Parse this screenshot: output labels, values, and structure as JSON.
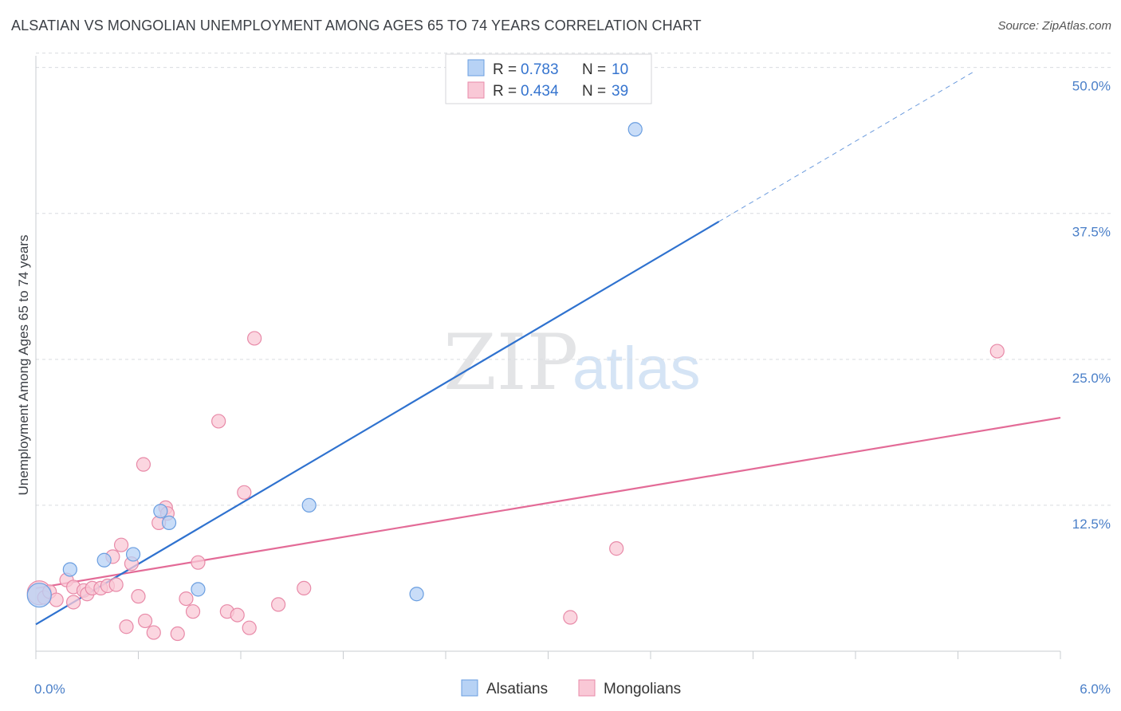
{
  "title": "ALSATIAN VS MONGOLIAN UNEMPLOYMENT AMONG AGES 65 TO 74 YEARS CORRELATION CHART",
  "source": "Source: ZipAtlas.com",
  "watermark": {
    "part1": "ZIP",
    "part2": "atlas"
  },
  "colors": {
    "alsatian_fill": "#b7d2f5",
    "alsatian_stroke": "#6a9ee0",
    "alsatian_line": "#2f72cf",
    "mongolian_fill": "#f9c8d6",
    "mongolian_stroke": "#e88aa8",
    "mongolian_line": "#e36b97",
    "grid": "#d9dce0",
    "tick_label": "#4a7fc8"
  },
  "legend": {
    "r_label": "R =",
    "n_label": "N =",
    "alsatian": {
      "r": "0.783",
      "n": "10"
    },
    "mongolian": {
      "r": "0.434",
      "n": "39"
    }
  },
  "bottom_legend": {
    "alsatian": "Alsatians",
    "mongolian": "Mongolians"
  },
  "chart_data": {
    "type": "scatter",
    "title": "ALSATIAN VS MONGOLIAN UNEMPLOYMENT AMONG AGES 65 TO 74 YEARS CORRELATION CHART",
    "xlabel": "",
    "ylabel": "Unemployment Among Ages 65 to 74 years",
    "xlim": [
      0,
      6.0
    ],
    "ylim": [
      0,
      51
    ],
    "x_tick_labels": [
      "0.0%",
      "6.0%"
    ],
    "y_ticks": [
      12.5,
      25.0,
      37.5,
      50.0
    ],
    "y_tick_labels": [
      "12.5%",
      "25.0%",
      "37.5%",
      "50.0%"
    ],
    "grid": true,
    "series": [
      {
        "name": "Alsatians",
        "r": 0.783,
        "n": 10,
        "points": [
          {
            "x": 0.02,
            "y": 4.8,
            "size": "large"
          },
          {
            "x": 0.2,
            "y": 7.0
          },
          {
            "x": 0.4,
            "y": 7.8
          },
          {
            "x": 0.57,
            "y": 8.3
          },
          {
            "x": 0.73,
            "y": 12.0
          },
          {
            "x": 0.78,
            "y": 11.0
          },
          {
            "x": 0.95,
            "y": 5.3
          },
          {
            "x": 1.6,
            "y": 12.5
          },
          {
            "x": 2.23,
            "y": 4.9
          },
          {
            "x": 3.51,
            "y": 44.7
          }
        ],
        "trend": {
          "x0": 0.0,
          "y0": 2.3,
          "x1": 4.0,
          "y1": 36.8,
          "dash_x1": 5.5,
          "dash_y1": 49.7
        }
      },
      {
        "name": "Mongolians",
        "r": 0.434,
        "n": 39,
        "points": [
          {
            "x": 0.02,
            "y": 5.0,
            "size": "large"
          },
          {
            "x": 0.05,
            "y": 4.6
          },
          {
            "x": 0.08,
            "y": 5.1
          },
          {
            "x": 0.12,
            "y": 4.4
          },
          {
            "x": 0.18,
            "y": 6.1
          },
          {
            "x": 0.22,
            "y": 5.5
          },
          {
            "x": 0.22,
            "y": 4.2
          },
          {
            "x": 0.28,
            "y": 5.2
          },
          {
            "x": 0.3,
            "y": 4.9
          },
          {
            "x": 0.33,
            "y": 5.4
          },
          {
            "x": 0.38,
            "y": 5.4
          },
          {
            "x": 0.42,
            "y": 5.6
          },
          {
            "x": 0.45,
            "y": 8.1
          },
          {
            "x": 0.47,
            "y": 5.7
          },
          {
            "x": 0.5,
            "y": 9.1
          },
          {
            "x": 0.53,
            "y": 2.1
          },
          {
            "x": 0.56,
            "y": 7.5
          },
          {
            "x": 0.6,
            "y": 4.7
          },
          {
            "x": 0.63,
            "y": 16.0
          },
          {
            "x": 0.64,
            "y": 2.6
          },
          {
            "x": 0.69,
            "y": 1.6
          },
          {
            "x": 0.72,
            "y": 11.0
          },
          {
            "x": 0.76,
            "y": 12.3
          },
          {
            "x": 0.77,
            "y": 11.8
          },
          {
            "x": 0.83,
            "y": 1.5
          },
          {
            "x": 0.88,
            "y": 4.5
          },
          {
            "x": 0.92,
            "y": 3.4
          },
          {
            "x": 0.95,
            "y": 7.6
          },
          {
            "x": 1.07,
            "y": 19.7
          },
          {
            "x": 1.12,
            "y": 3.4
          },
          {
            "x": 1.18,
            "y": 3.1
          },
          {
            "x": 1.22,
            "y": 13.6
          },
          {
            "x": 1.25,
            "y": 2.0
          },
          {
            "x": 1.28,
            "y": 26.8
          },
          {
            "x": 1.42,
            "y": 4.0
          },
          {
            "x": 1.57,
            "y": 5.4
          },
          {
            "x": 3.13,
            "y": 2.9
          },
          {
            "x": 3.4,
            "y": 8.8
          },
          {
            "x": 5.63,
            "y": 25.7
          }
        ],
        "trend": {
          "x0": 0.0,
          "y0": 5.4,
          "x1": 6.0,
          "y1": 20.0
        }
      }
    ]
  }
}
